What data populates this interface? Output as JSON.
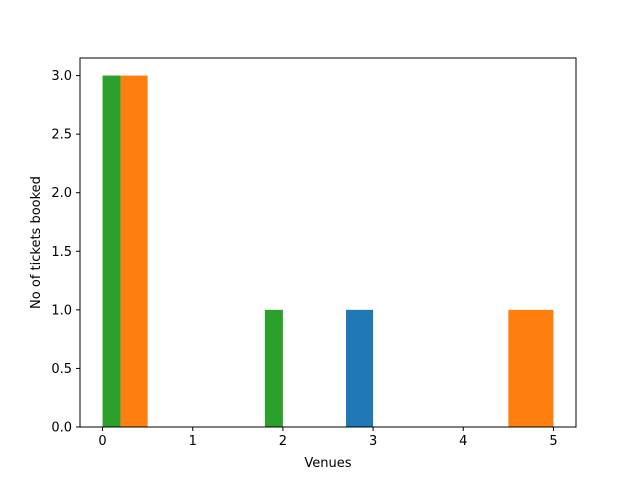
{
  "chart_data": {
    "type": "bar",
    "xlabel": "Venues",
    "ylabel": "No of tickets booked",
    "xlim": [
      -0.25,
      5.25
    ],
    "ylim": [
      0,
      3.15
    ],
    "xticks": [
      "0",
      "1",
      "2",
      "3",
      "4",
      "5"
    ],
    "yticks": [
      "0.0",
      "0.5",
      "1.0",
      "1.5",
      "2.0",
      "2.5",
      "3.0"
    ],
    "grid": false,
    "bars": [
      {
        "x0": 0.0,
        "x1": 0.2,
        "value": 3,
        "color": "#2ca02c"
      },
      {
        "x0": 0.2,
        "x1": 0.5,
        "value": 3,
        "color": "#ff7f0e"
      },
      {
        "x0": 1.8,
        "x1": 2.0,
        "value": 1,
        "color": "#2ca02c"
      },
      {
        "x0": 2.7,
        "x1": 3.0,
        "value": 1,
        "color": "#1f77b4"
      },
      {
        "x0": 4.5,
        "x1": 5.0,
        "value": 1,
        "color": "#ff7f0e"
      }
    ]
  }
}
